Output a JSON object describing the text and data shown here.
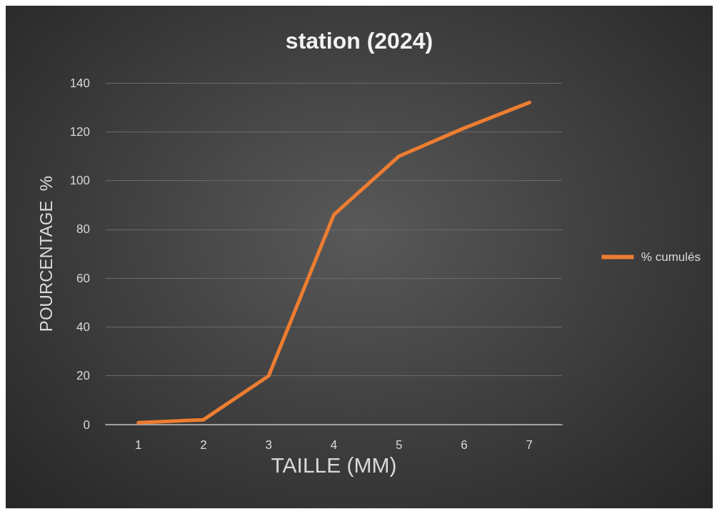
{
  "chart_data": {
    "type": "line",
    "title": "station (2024)",
    "xlabel": "TAILLE (MM)",
    "ylabel": "POURCENTAGE  %",
    "categories": [
      "1",
      "2",
      "3",
      "4",
      "5",
      "6",
      "7"
    ],
    "series": [
      {
        "name": "% cumulés",
        "color": "#ed7d31",
        "values": [
          0.8,
          2,
          20,
          86,
          110,
          121.5,
          132
        ]
      }
    ],
    "ylim": [
      0,
      140
    ],
    "yticks": [
      0,
      20,
      40,
      60,
      80,
      100,
      120,
      140
    ],
    "grid": "y",
    "legend": "right",
    "marker": "none",
    "line_style": "solid"
  }
}
